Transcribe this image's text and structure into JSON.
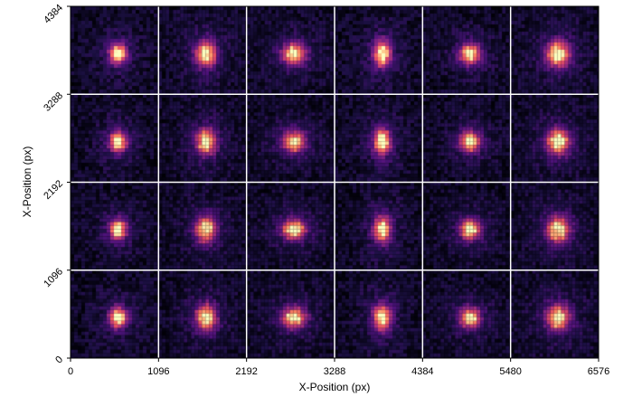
{
  "chart_data": {
    "type": "heatmap",
    "title": "",
    "xlabel": "X-Position (px)",
    "ylabel": "X-Position (px)",
    "xlim": [
      0,
      6576
    ],
    "ylim": [
      0,
      4384
    ],
    "xticks": [
      "0",
      "1096",
      "2192",
      "3288",
      "4384",
      "5480",
      "6576"
    ],
    "yticks": [
      "0",
      "1096",
      "2192",
      "3288",
      "4384"
    ],
    "grid": true,
    "grid_color": "#ffffff",
    "colormap": "magma",
    "colormap_stops": [
      "#000004",
      "#1c1044",
      "#4f127b",
      "#812581",
      "#b5367a",
      "#e55064",
      "#fb8761",
      "#fec287",
      "#fcfdbf"
    ],
    "grid_cols": 6,
    "grid_rows": 4,
    "star_tiles": [
      {
        "row": 1,
        "col": 1,
        "shape": "elongated vertical, bright on right"
      },
      {
        "row": 1,
        "col": 2,
        "shape": "compact blob"
      },
      {
        "row": 1,
        "col": 3,
        "shape": "round blob with halo"
      },
      {
        "row": 1,
        "col": 4,
        "shape": "irregular blob"
      },
      {
        "row": 1,
        "col": 5,
        "shape": "tilted blob"
      },
      {
        "row": 1,
        "col": 6,
        "shape": "diagonal blob"
      },
      {
        "row": 2,
        "col": 1,
        "shape": "elongated vertical"
      },
      {
        "row": 2,
        "col": 2,
        "shape": "vertical blob"
      },
      {
        "row": 2,
        "col": 3,
        "shape": "small compact"
      },
      {
        "row": 2,
        "col": 4,
        "shape": "small compact"
      },
      {
        "row": 2,
        "col": 5,
        "shape": "tilted blob"
      },
      {
        "row": 2,
        "col": 6,
        "shape": "wide blob"
      },
      {
        "row": 3,
        "col": 1,
        "shape": "vertical blob"
      },
      {
        "row": 3,
        "col": 2,
        "shape": "vertical blob"
      },
      {
        "row": 3,
        "col": 3,
        "shape": "tiny compact"
      },
      {
        "row": 3,
        "col": 4,
        "shape": "tiny compact"
      },
      {
        "row": 3,
        "col": 5,
        "shape": "wide blob"
      },
      {
        "row": 3,
        "col": 6,
        "shape": "wide blob with tail"
      },
      {
        "row": 4,
        "col": 1,
        "shape": "wide blob"
      },
      {
        "row": 4,
        "col": 2,
        "shape": "compact blob"
      },
      {
        "row": 4,
        "col": 3,
        "shape": "compact blob"
      },
      {
        "row": 4,
        "col": 4,
        "shape": "irregular blob"
      },
      {
        "row": 4,
        "col": 5,
        "shape": "blob"
      },
      {
        "row": 4,
        "col": 6,
        "shape": "elongated blob"
      }
    ]
  }
}
